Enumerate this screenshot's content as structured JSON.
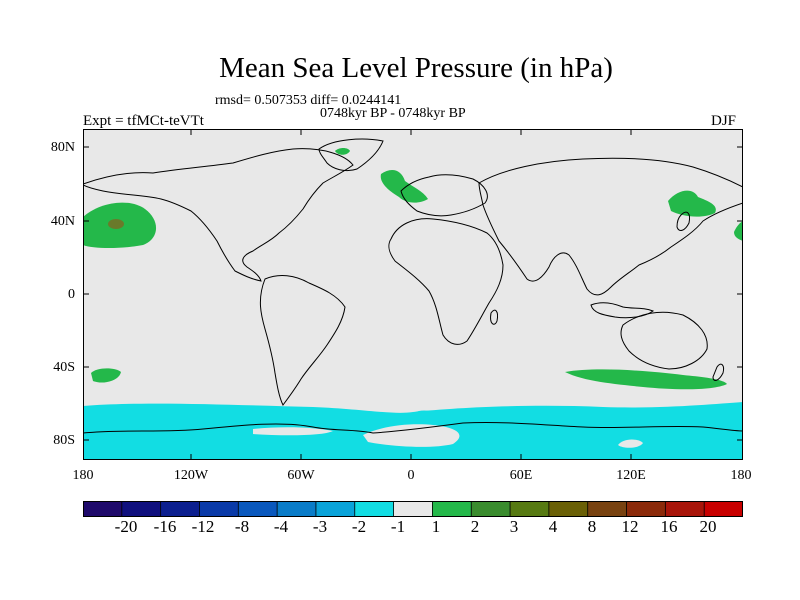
{
  "title": "Mean Sea Level Pressure (in hPa)",
  "stats": "rmsd= 0.507353 diff= 0.0244141",
  "period": "0748kyr BP - 0748kyr BP",
  "experiment": "Expt = tfMCt-teVTt",
  "season": "DJF",
  "lat_labels": [
    "80N",
    "40N",
    "0",
    "40S",
    "80S"
  ],
  "lon_labels": [
    "180",
    "120W",
    "60W",
    "0",
    "60E",
    "120E",
    "180"
  ],
  "colorbar": {
    "colors": [
      "#1f0a6b",
      "#10107e",
      "#0c1f8f",
      "#0a3aa8",
      "#0a58bd",
      "#0a7cc8",
      "#0aa3d9",
      "#12dde3",
      "#e8e8e8",
      "#24b84a",
      "#3a8c2e",
      "#577a12",
      "#6a6006",
      "#784210",
      "#8b2a0a",
      "#a8150a",
      "#c80000"
    ],
    "labels": [
      "-20",
      "-16",
      "-12",
      "-8",
      "-4",
      "-3",
      "-2",
      "-1",
      "1",
      "2",
      "3",
      "4",
      "8",
      "12",
      "16",
      "20"
    ]
  },
  "colors": {
    "land_ocean": "#e8e8e8",
    "positive": "#24b84a",
    "negative": "#12dde3",
    "core": "#6a7a2a"
  }
}
